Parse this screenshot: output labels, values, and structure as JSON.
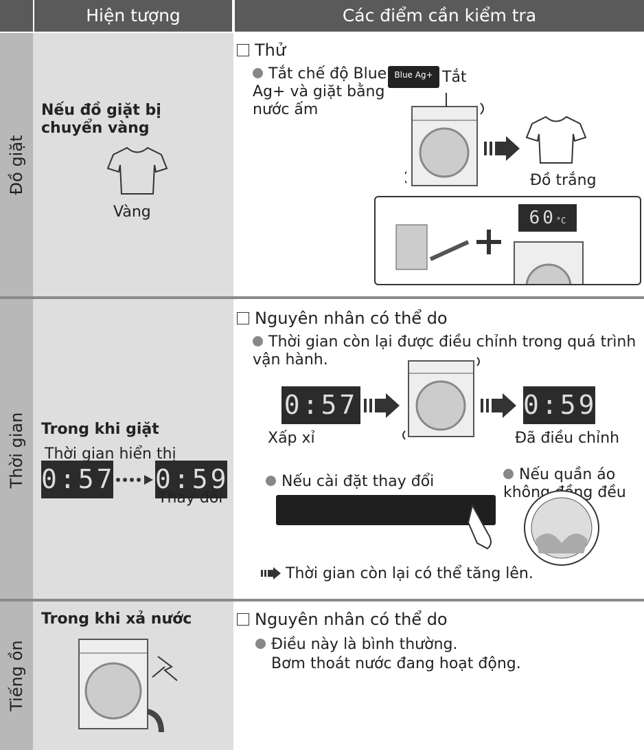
{
  "header": {
    "symptom": "Hiện tượng",
    "check": "Các điểm cần kiểm tra"
  },
  "rows": [
    {
      "category": "Đồ giặt",
      "symptom": "Nếu đồ giặt bị chuyển vàng",
      "symptom_caption": "Vàng",
      "check_title": "Thử",
      "bullet": "Tắt chế độ Blue Ag+ và giặt bằng nước ấm",
      "mode_label": "Blue Ag+",
      "mode_state": "Tắt",
      "result_caption": "Đồ trắng",
      "temp_display": "60",
      "temp_unit": "°C"
    },
    {
      "category": "Thời gian",
      "symptom": "Trong khi giặt",
      "symptom_sub": "Thời gian hiển thị",
      "display_before": "0:57",
      "display_after": "0:59",
      "symptom_caption": "Thay đổi",
      "check_title": "Nguyên nhân có thể do",
      "bullet": "Thời gian còn lại được điều chỉnh trong quá trình vận hành.",
      "caption_before": "Xấp xỉ",
      "caption_after": "Đã điều chỉnh",
      "bullet_2": "Nếu cài đặt thay đổi",
      "bullet_3": "Nếu quần áo không đồng đều",
      "conclusion": "Thời gian còn lại có thể tăng lên."
    },
    {
      "category": "Tiếng ồn",
      "symptom": "Trong khi xả nước",
      "check_title": "Nguyên nhân có thể do",
      "bullet": "Điều này là bình thường.",
      "bullet_line_2": "Bơm thoát nước đang hoạt động."
    }
  ]
}
